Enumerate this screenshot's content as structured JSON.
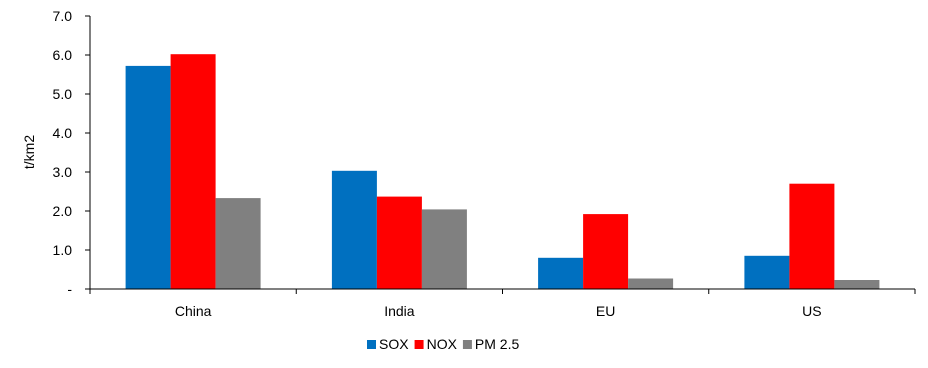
{
  "chart_data": {
    "type": "bar",
    "ylabel": "t/km2",
    "xlabel": "",
    "categories": [
      "China",
      "India",
      "EU",
      "US"
    ],
    "ylim": [
      0,
      7
    ],
    "yticks": [
      {
        "value": 0,
        "label": "-"
      },
      {
        "value": 1,
        "label": "1.0"
      },
      {
        "value": 2,
        "label": "2.0"
      },
      {
        "value": 3,
        "label": "3.0"
      },
      {
        "value": 4,
        "label": "4.0"
      },
      {
        "value": 5,
        "label": "5.0"
      },
      {
        "value": 6,
        "label": "6.0"
      },
      {
        "value": 7,
        "label": "7.0"
      }
    ],
    "series": [
      {
        "name": "SOX",
        "color": "#0070C0",
        "values": [
          5.72,
          3.03,
          0.8,
          0.85
        ]
      },
      {
        "name": "NOX",
        "color": "#FF0000",
        "values": [
          6.02,
          2.37,
          1.92,
          2.7
        ]
      },
      {
        "name": "PM 2.5",
        "color": "#808080",
        "values": [
          2.33,
          2.04,
          0.27,
          0.23
        ]
      }
    ],
    "grid": false,
    "legend_position": "bottom-center"
  }
}
